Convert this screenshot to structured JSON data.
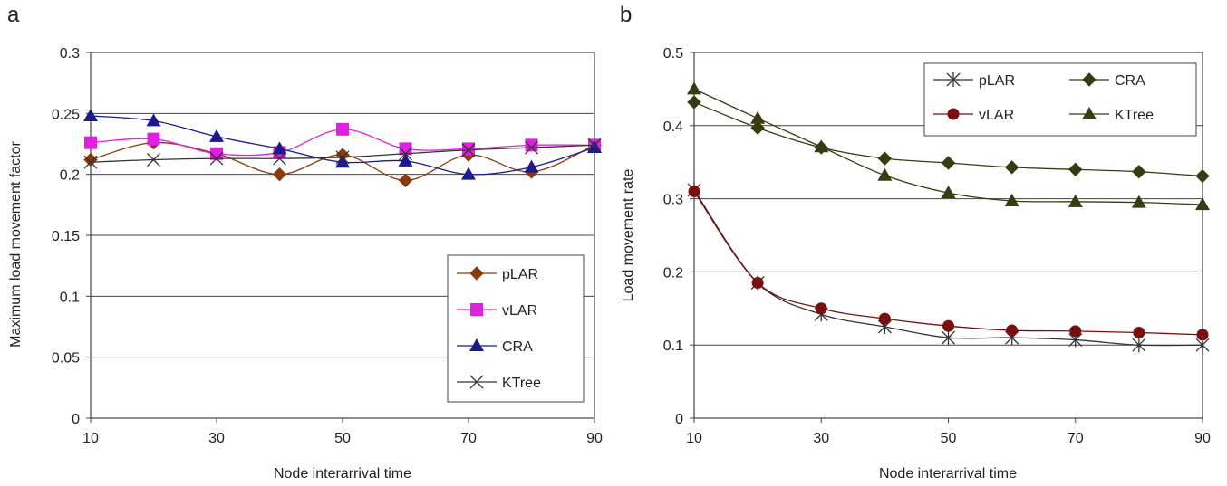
{
  "chart_data": [
    {
      "panel_label": "a",
      "type": "line",
      "xlabel": "Node interarrival time",
      "ylabel": "Maximum load movement factor",
      "x": [
        10,
        20,
        30,
        40,
        50,
        60,
        70,
        80,
        90
      ],
      "xticks": [
        10,
        30,
        50,
        70,
        90
      ],
      "xlim": [
        10,
        90
      ],
      "ylim": [
        0,
        0.3
      ],
      "yticks": [
        0,
        0.05,
        0.1,
        0.15,
        0.2,
        0.25,
        0.3
      ],
      "ytick_labels": [
        "0",
        "0.05",
        "0.1",
        "0.15",
        "0.2",
        "0.25",
        "0.3"
      ],
      "grid": "horizontal",
      "legend_position": "bottom-right",
      "series": [
        {
          "name": "pLAR",
          "color": "#8B3A0E",
          "marker": "diamond",
          "values": [
            0.212,
            0.226,
            0.217,
            0.2,
            0.216,
            0.195,
            0.216,
            0.202,
            0.224
          ]
        },
        {
          "name": "vLAR",
          "color": "#E020E0",
          "marker": "square",
          "values": [
            0.226,
            0.229,
            0.217,
            0.218,
            0.237,
            0.221,
            0.221,
            0.224,
            0.224
          ]
        },
        {
          "name": "CRA",
          "color": "#1A1A8C",
          "marker": "triangle",
          "values": [
            0.248,
            0.244,
            0.231,
            0.221,
            0.21,
            0.211,
            0.2,
            0.206,
            0.222
          ]
        },
        {
          "name": "KTree",
          "color": "#333333",
          "marker": "x",
          "values": [
            0.21,
            0.212,
            0.213,
            0.213,
            0.214,
            0.217,
            0.22,
            0.222,
            0.224
          ]
        }
      ]
    },
    {
      "panel_label": "b",
      "type": "line",
      "xlabel": "Node interarrival time",
      "ylabel": "Load movement rate",
      "x": [
        10,
        20,
        30,
        40,
        50,
        60,
        70,
        80,
        90
      ],
      "xticks": [
        10,
        30,
        50,
        70,
        90
      ],
      "xlim": [
        10,
        90
      ],
      "ylim": [
        0,
        0.5
      ],
      "yticks": [
        0,
        0.1,
        0.2,
        0.3,
        0.4,
        0.5
      ],
      "ytick_labels": [
        "0",
        "0.1",
        "0.2",
        "0.3",
        "0.4",
        "0.5"
      ],
      "grid": "horizontal",
      "legend_position": "top",
      "series": [
        {
          "name": "pLAR",
          "color": "#333333",
          "marker": "star",
          "values": [
            0.312,
            0.185,
            0.142,
            0.125,
            0.11,
            0.11,
            0.107,
            0.1,
            0.1
          ]
        },
        {
          "name": "CRA",
          "color": "#3A3A12",
          "marker": "diamond",
          "values": [
            0.432,
            0.397,
            0.37,
            0.355,
            0.349,
            0.343,
            0.34,
            0.337,
            0.331
          ]
        },
        {
          "name": "vLAR",
          "color": "#7A0F0F",
          "marker": "circle",
          "values": [
            0.31,
            0.185,
            0.15,
            0.136,
            0.126,
            0.12,
            0.119,
            0.117,
            0.114
          ]
        },
        {
          "name": "KTree",
          "color": "#3A3A12",
          "marker": "triangle",
          "values": [
            0.45,
            0.41,
            0.371,
            0.332,
            0.308,
            0.297,
            0.296,
            0.295,
            0.292
          ]
        }
      ]
    }
  ]
}
